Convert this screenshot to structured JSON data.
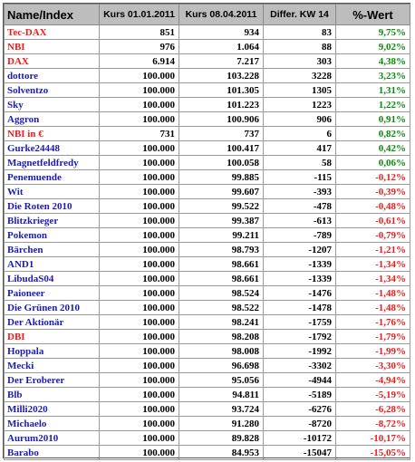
{
  "headers": {
    "name": "Name/Index",
    "kurs1": "Kurs 01.01.2011",
    "kurs2": "Kurs 08.04.2011",
    "diff": "Differ. KW 14",
    "pct": "%-Wert"
  },
  "colors": {
    "header_bg": "#bdbdbd",
    "name_blue": "#1c1cb4",
    "name_red": "#ee1c1c",
    "positive": "#0f8a0f",
    "negative": "#ee1c1c"
  },
  "rows": [
    {
      "name": "Tec-DAX",
      "kurs1": "851",
      "kurs2": "934",
      "diff": "83",
      "pct": "9,75%",
      "name_color": "red",
      "sign": "pos"
    },
    {
      "name": "NBI",
      "kurs1": "976",
      "kurs2": "1.064",
      "diff": "88",
      "pct": "9,02%",
      "name_color": "red",
      "sign": "pos"
    },
    {
      "name": "DAX",
      "kurs1": "6.914",
      "kurs2": "7.217",
      "diff": "303",
      "pct": "4,38%",
      "name_color": "red",
      "sign": "pos"
    },
    {
      "name": "dottore",
      "kurs1": "100.000",
      "kurs2": "103.228",
      "diff": "3228",
      "pct": "3,23%",
      "name_color": "blue",
      "sign": "pos"
    },
    {
      "name": "Solventzo",
      "kurs1": "100.000",
      "kurs2": "101.305",
      "diff": "1305",
      "pct": "1,31%",
      "name_color": "blue",
      "sign": "pos"
    },
    {
      "name": "Sky",
      "kurs1": "100.000",
      "kurs2": "101.223",
      "diff": "1223",
      "pct": "1,22%",
      "name_color": "blue",
      "sign": "pos"
    },
    {
      "name": "Aggron",
      "kurs1": "100.000",
      "kurs2": "100.906",
      "diff": "906",
      "pct": "0,91%",
      "name_color": "blue",
      "sign": "pos"
    },
    {
      "name": "NBI in €",
      "kurs1": "731",
      "kurs2": "737",
      "diff": "6",
      "pct": "0,82%",
      "name_color": "red",
      "sign": "pos"
    },
    {
      "name": "Gurke24448",
      "kurs1": "100.000",
      "kurs2": "100.417",
      "diff": "417",
      "pct": "0,42%",
      "name_color": "blue",
      "sign": "pos"
    },
    {
      "name": "Magnetfeldfredy",
      "kurs1": "100.000",
      "kurs2": "100.058",
      "diff": "58",
      "pct": "0,06%",
      "name_color": "blue",
      "sign": "pos"
    },
    {
      "name": "Penemuende",
      "kurs1": "100.000",
      "kurs2": "99.885",
      "diff": "-115",
      "pct": "-0,12%",
      "name_color": "blue",
      "sign": "neg"
    },
    {
      "name": "Wit",
      "kurs1": "100.000",
      "kurs2": "99.607",
      "diff": "-393",
      "pct": "-0,39%",
      "name_color": "blue",
      "sign": "neg"
    },
    {
      "name": "Die Roten 2010",
      "kurs1": "100.000",
      "kurs2": "99.522",
      "diff": "-478",
      "pct": "-0,48%",
      "name_color": "blue",
      "sign": "neg"
    },
    {
      "name": "Blitzkrieger",
      "kurs1": "100.000",
      "kurs2": "99.387",
      "diff": "-613",
      "pct": "-0,61%",
      "name_color": "blue",
      "sign": "neg"
    },
    {
      "name": "Pokemon",
      "kurs1": "100.000",
      "kurs2": "99.211",
      "diff": "-789",
      "pct": "-0,79%",
      "name_color": "blue",
      "sign": "neg"
    },
    {
      "name": "Bärchen",
      "kurs1": "100.000",
      "kurs2": "98.793",
      "diff": "-1207",
      "pct": "-1,21%",
      "name_color": "blue",
      "sign": "neg"
    },
    {
      "name": "AND1",
      "kurs1": "100.000",
      "kurs2": "98.661",
      "diff": "-1339",
      "pct": "-1,34%",
      "name_color": "blue",
      "sign": "neg"
    },
    {
      "name": "LibudaS04",
      "kurs1": "100.000",
      "kurs2": "98.661",
      "diff": "-1339",
      "pct": "-1,34%",
      "name_color": "blue",
      "sign": "neg"
    },
    {
      "name": "Paioneer",
      "kurs1": "100.000",
      "kurs2": "98.524",
      "diff": "-1476",
      "pct": "-1,48%",
      "name_color": "blue",
      "sign": "neg"
    },
    {
      "name": "Die Grünen 2010",
      "kurs1": "100.000",
      "kurs2": "98.522",
      "diff": "-1478",
      "pct": "-1,48%",
      "name_color": "blue",
      "sign": "neg"
    },
    {
      "name": "Der Aktionär",
      "kurs1": "100.000",
      "kurs2": "98.241",
      "diff": "-1759",
      "pct": "-1,76%",
      "name_color": "blue",
      "sign": "neg"
    },
    {
      "name": "DBI",
      "kurs1": "100.000",
      "kurs2": "98.208",
      "diff": "-1792",
      "pct": "-1,79%",
      "name_color": "red",
      "sign": "neg"
    },
    {
      "name": "Hoppala",
      "kurs1": "100.000",
      "kurs2": "98.008",
      "diff": "-1992",
      "pct": "-1,99%",
      "name_color": "blue",
      "sign": "neg"
    },
    {
      "name": "Mecki",
      "kurs1": "100.000",
      "kurs2": "96.698",
      "diff": "-3302",
      "pct": "-3,30%",
      "name_color": "blue",
      "sign": "neg"
    },
    {
      "name": "Der Eroberer",
      "kurs1": "100.000",
      "kurs2": "95.056",
      "diff": "-4944",
      "pct": "-4,94%",
      "name_color": "blue",
      "sign": "neg"
    },
    {
      "name": "Blb",
      "kurs1": "100.000",
      "kurs2": "94.811",
      "diff": "-5189",
      "pct": "-5,19%",
      "name_color": "blue",
      "sign": "neg"
    },
    {
      "name": "Milli2020",
      "kurs1": "100.000",
      "kurs2": "93.724",
      "diff": "-6276",
      "pct": "-6,28%",
      "name_color": "blue",
      "sign": "neg"
    },
    {
      "name": "Michaelo",
      "kurs1": "100.000",
      "kurs2": "91.280",
      "diff": "-8720",
      "pct": "-8,72%",
      "name_color": "blue",
      "sign": "neg"
    },
    {
      "name": "Aurum2010",
      "kurs1": "100.000",
      "kurs2": "89.828",
      "diff": "-10172",
      "pct": "-10,17%",
      "name_color": "blue",
      "sign": "neg"
    },
    {
      "name": "Barabo",
      "kurs1": "100.000",
      "kurs2": "84.953",
      "diff": "-15047",
      "pct": "-15,05%",
      "name_color": "blue",
      "sign": "neg"
    }
  ]
}
